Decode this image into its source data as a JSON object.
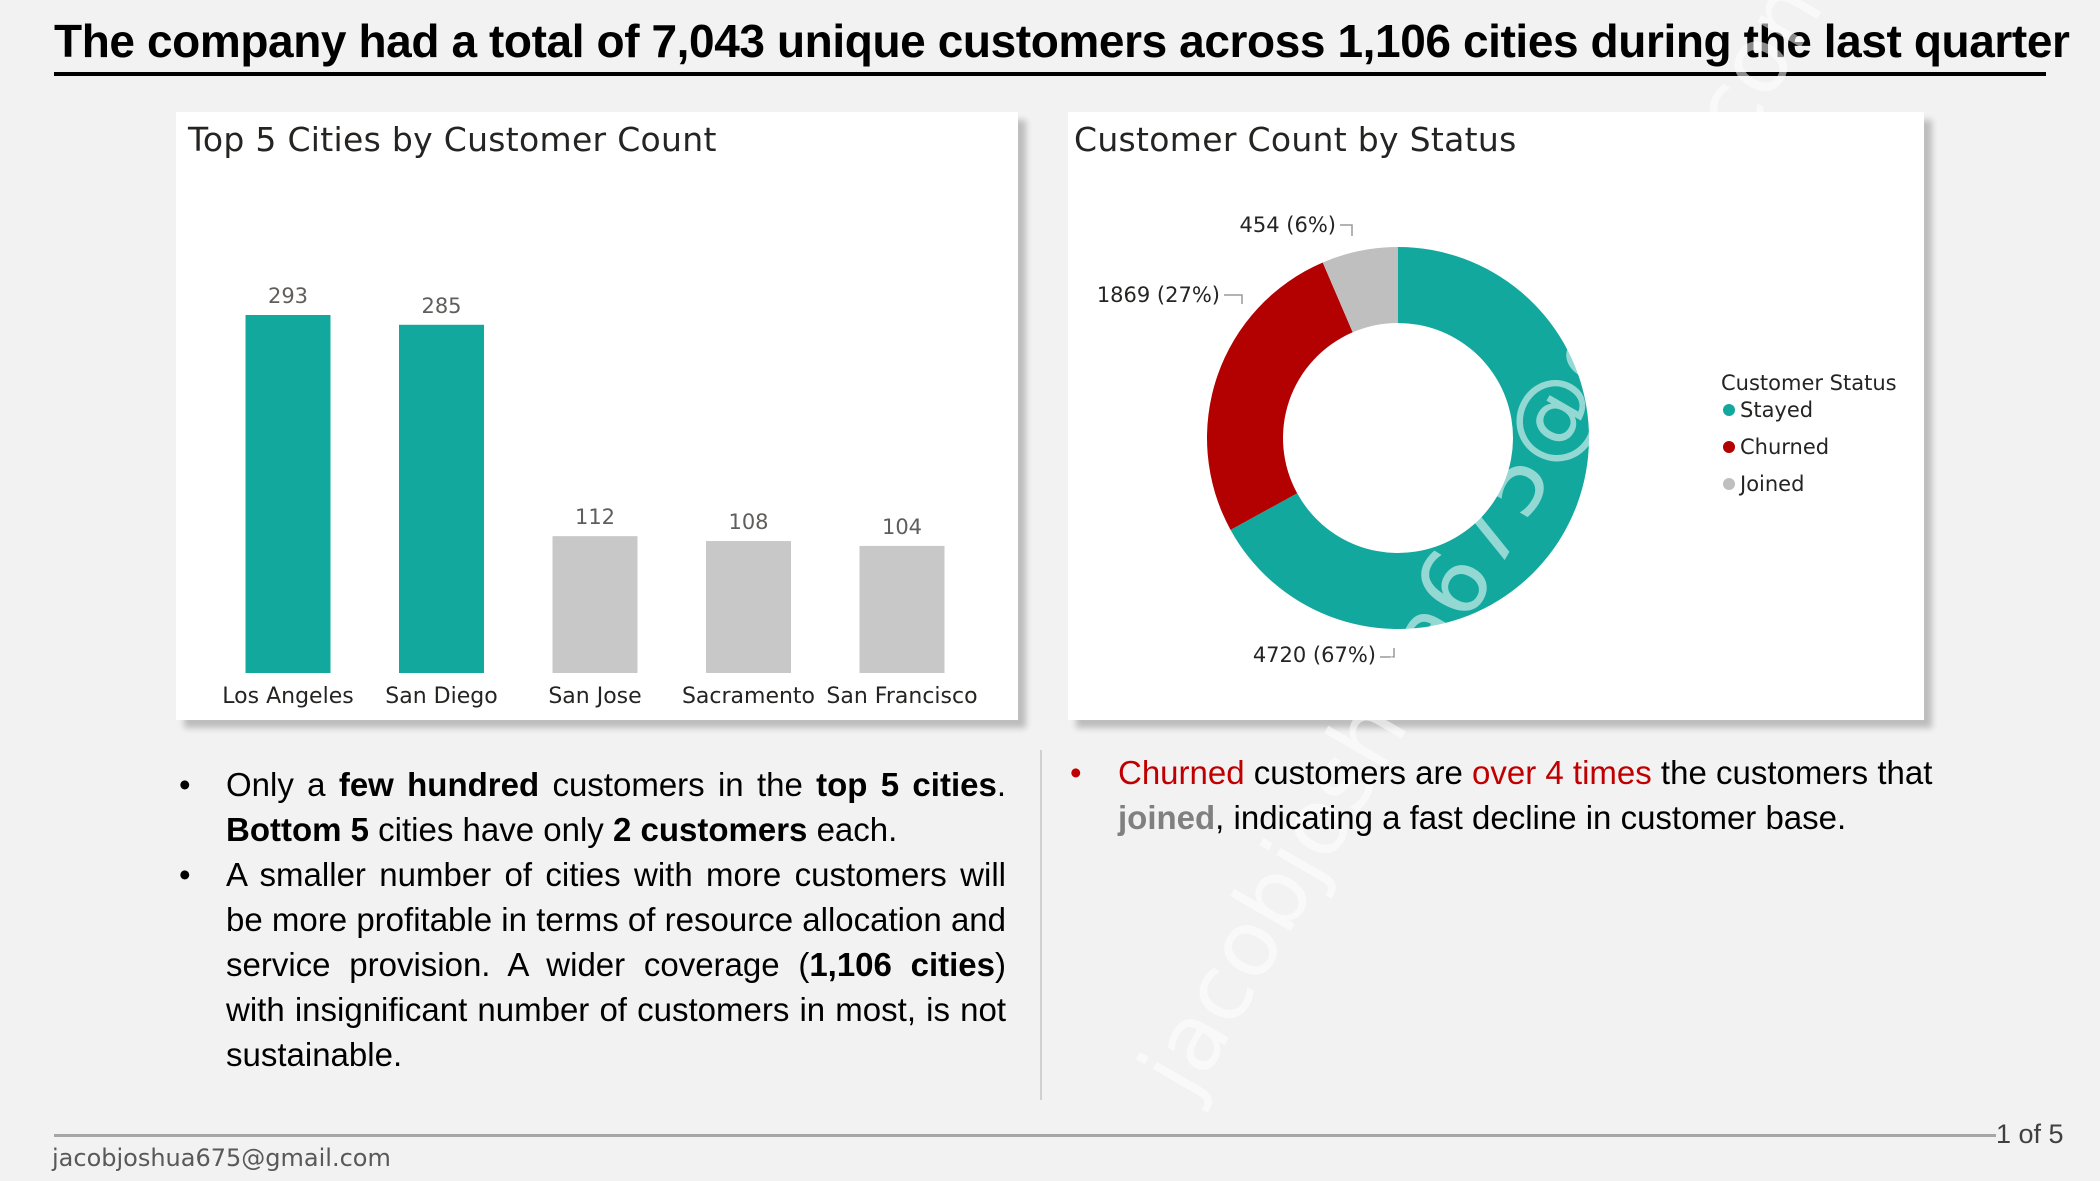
{
  "slide_title": "The company had a total of 7,043 unique customers across 1,106 cities during the last quarter",
  "colors": {
    "teal": "#12a89e",
    "red": "#c00000",
    "gray": "#c8c8c8"
  },
  "chart_data": [
    {
      "type": "bar",
      "title": "Top 5 Cities by Customer Count",
      "categories": [
        "Los Angeles",
        "San Diego",
        "San Jose",
        "Sacramento",
        "San Francisco"
      ],
      "values": [
        293,
        285,
        112,
        108,
        104
      ],
      "value_labels": [
        "293",
        "285",
        "112",
        "108",
        "104"
      ],
      "bar_colors": [
        "#12a89e",
        "#12a89e",
        "#c8c8c8",
        "#c8c8c8",
        "#c8c8c8"
      ],
      "ylim": [
        0,
        293
      ],
      "grid": false
    },
    {
      "type": "pie",
      "style": "donut",
      "title": "Customer Count by Status",
      "legend_title": "Customer Status",
      "legend_position": "right",
      "slices": [
        {
          "name": "Stayed",
          "value": 4720,
          "label": "4720 (67%)",
          "color": "#12a89e"
        },
        {
          "name": "Churned",
          "value": 1869,
          "label": "1869 (27%)",
          "color": "#b30000"
        },
        {
          "name": "Joined",
          "value": 454,
          "label": "454 (6%)",
          "color": "#bfbfbf"
        }
      ]
    }
  ],
  "left_bullets": {
    "b1": {
      "t1": "Only a ",
      "t2": "few hundred",
      "t3": " customers in the ",
      "t4": "top 5 cities",
      "t5": ". ",
      "t6": "Bottom 5",
      "t7": " cities have only ",
      "t8": "2 customers",
      "t9": " each."
    },
    "b2": {
      "t1": "A smaller number of cities with more customers will be more profitable in terms of resource allocation and service provision. A wider coverage (",
      "t2": "1,106 cities",
      "t3": ") with insignificant number of customers in most, is not sustainable."
    }
  },
  "right_bullets": {
    "b1": {
      "t1": "Churned",
      "t2": " customers are ",
      "t3": "over 4 times",
      "t4": " the customers that ",
      "t5": "joined",
      "t6": ", indicating a fast decline in customer base."
    }
  },
  "watermark": "jacobjoshua675@gmail.com",
  "footer": {
    "email": "jacobjoshua675@gmail.com",
    "page": "1 of 5"
  }
}
